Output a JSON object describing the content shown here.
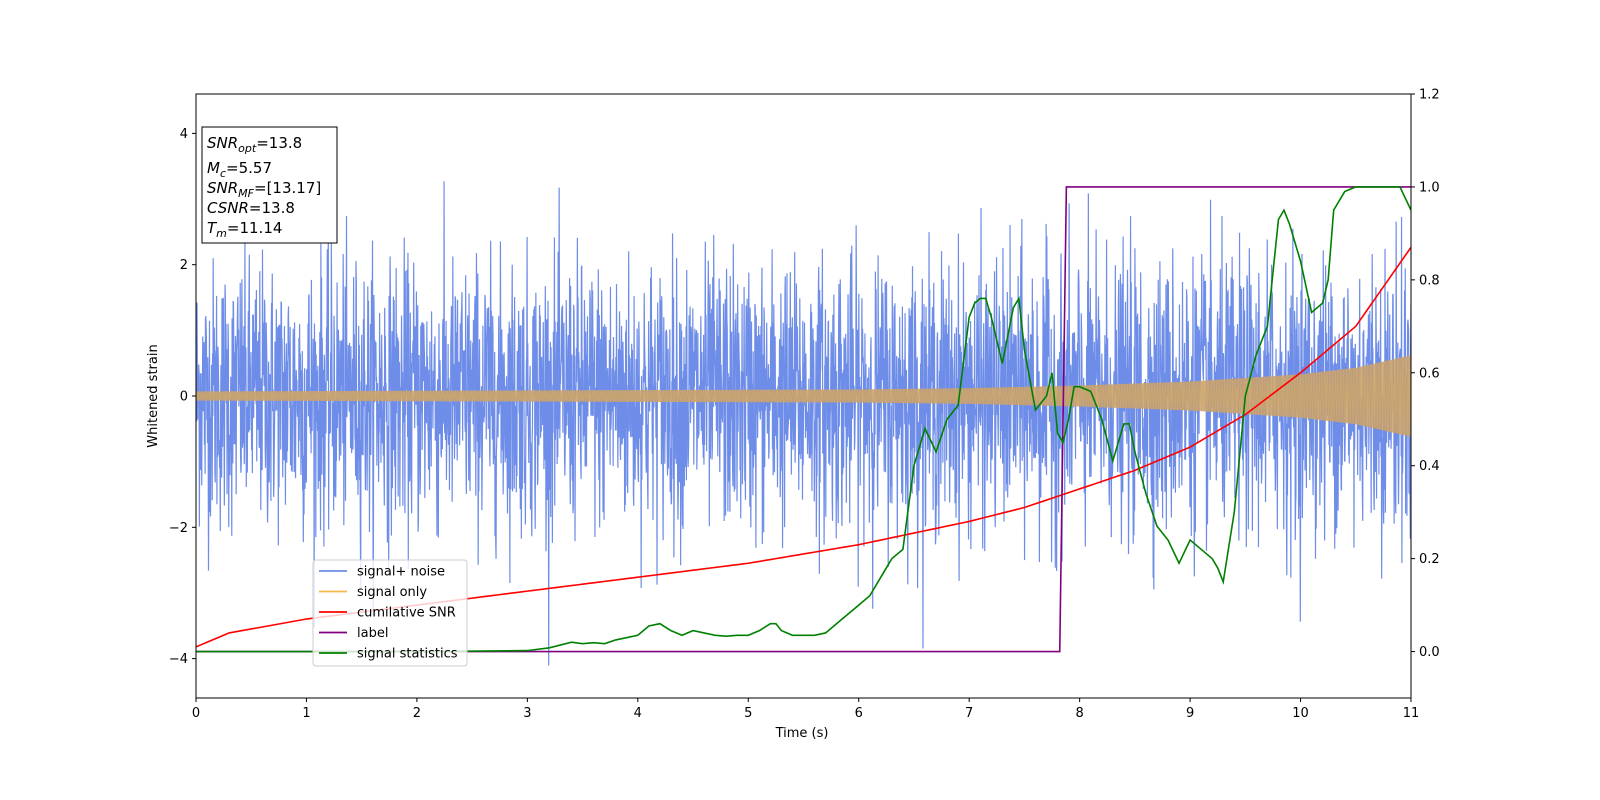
{
  "chart_data": {
    "type": "line",
    "xlabel": "Time (s)",
    "ylabel": "Whitened strain",
    "xlim": [
      0,
      11
    ],
    "ylim_left": [
      -4.6,
      4.6
    ],
    "ylim_right": [
      -0.1,
      1.2
    ],
    "xticks": [
      "0",
      "1",
      "2",
      "3",
      "4",
      "5",
      "6",
      "7",
      "8",
      "9",
      "10",
      "11"
    ],
    "yticks_left": [
      "−4",
      "−2",
      "0",
      "2",
      "4"
    ],
    "yticks_right": [
      "0.0",
      "0.2",
      "0.4",
      "0.6",
      "0.8",
      "1.0",
      "1.2"
    ],
    "legend_position": "lower-left",
    "grid": false,
    "series": [
      {
        "name": "signal+ noise",
        "axis": "left",
        "color": "#6e8de8",
        "noise_sigma": 1.0,
        "noise_peak": 4.2
      },
      {
        "name": "signal only",
        "axis": "left",
        "color": "#f5b94a",
        "envelope": {
          "x": [
            0,
            2,
            4,
            6,
            7,
            8,
            9,
            10,
            10.5,
            11
          ],
          "amp": [
            0.07,
            0.08,
            0.09,
            0.1,
            0.12,
            0.16,
            0.22,
            0.33,
            0.43,
            0.62
          ]
        }
      },
      {
        "name": "cumilative SNR",
        "axis": "right",
        "color": "#ff0000",
        "x": [
          0,
          0.3,
          1,
          2,
          3,
          4,
          5,
          6,
          7,
          7.5,
          8,
          8.5,
          9,
          9.5,
          10,
          10.5,
          11
        ],
        "y": [
          0.01,
          0.04,
          0.07,
          0.1,
          0.13,
          0.16,
          0.19,
          0.23,
          0.28,
          0.31,
          0.35,
          0.39,
          0.44,
          0.51,
          0.6,
          0.7,
          0.87
        ]
      },
      {
        "name": "label",
        "axis": "right",
        "color": "#800080",
        "x": [
          0,
          7.82,
          7.88,
          11
        ],
        "y": [
          0,
          0,
          1,
          1
        ]
      },
      {
        "name": "signal statistics",
        "axis": "right",
        "color": "#008000",
        "x": [
          0,
          2,
          3,
          3.2,
          3.4,
          3.5,
          3.6,
          3.7,
          3.8,
          4,
          4.1,
          4.2,
          4.3,
          4.4,
          4.5,
          4.6,
          4.7,
          4.8,
          4.9,
          5,
          5.1,
          5.2,
          5.25,
          5.3,
          5.4,
          5.5,
          5.6,
          5.7,
          5.8,
          5.9,
          6,
          6.1,
          6.2,
          6.3,
          6.4,
          6.5,
          6.6,
          6.7,
          6.8,
          6.9,
          7,
          7.05,
          7.1,
          7.15,
          7.2,
          7.3,
          7.4,
          7.45,
          7.5,
          7.6,
          7.7,
          7.75,
          7.8,
          7.85,
          7.9,
          7.95,
          8,
          8.1,
          8.2,
          8.3,
          8.4,
          8.45,
          8.5,
          8.6,
          8.7,
          8.8,
          8.9,
          9,
          9.1,
          9.2,
          9.25,
          9.3,
          9.4,
          9.5,
          9.6,
          9.7,
          9.8,
          9.85,
          9.9,
          10,
          10.1,
          10.2,
          10.25,
          10.3,
          10.4,
          10.5,
          10.6,
          10.7,
          10.8,
          10.9,
          11
        ],
        "y": [
          0,
          0,
          0.002,
          0.008,
          0.02,
          0.017,
          0.019,
          0.017,
          0.025,
          0.035,
          0.055,
          0.06,
          0.045,
          0.035,
          0.045,
          0.04,
          0.035,
          0.033,
          0.035,
          0.035,
          0.045,
          0.06,
          0.06,
          0.045,
          0.035,
          0.035,
          0.035,
          0.04,
          0.06,
          0.08,
          0.1,
          0.12,
          0.16,
          0.2,
          0.22,
          0.4,
          0.48,
          0.43,
          0.5,
          0.53,
          0.72,
          0.75,
          0.76,
          0.76,
          0.72,
          0.62,
          0.74,
          0.76,
          0.65,
          0.52,
          0.55,
          0.6,
          0.47,
          0.45,
          0.5,
          0.57,
          0.57,
          0.56,
          0.5,
          0.41,
          0.49,
          0.49,
          0.43,
          0.34,
          0.27,
          0.24,
          0.19,
          0.24,
          0.22,
          0.2,
          0.18,
          0.15,
          0.3,
          0.55,
          0.64,
          0.7,
          0.93,
          0.95,
          0.92,
          0.84,
          0.73,
          0.75,
          0.8,
          0.95,
          0.99,
          1.0,
          1.0,
          1.0,
          1.0,
          1.0,
          0.95
        ]
      }
    ],
    "annotation": {
      "snr_opt": {
        "base": "SNR",
        "sub": "opt",
        "value": "=13.8"
      },
      "mc": {
        "base": "M",
        "sub": "c",
        "value": "=5.57"
      },
      "snr_mf": {
        "base": "SNR",
        "sub": "MF",
        "value": "=[13.17]"
      },
      "csnr": {
        "base": "CSNR",
        "value": "=13.8"
      },
      "tm": {
        "base": "T",
        "sub": "m",
        "value": "=11.14"
      }
    }
  }
}
